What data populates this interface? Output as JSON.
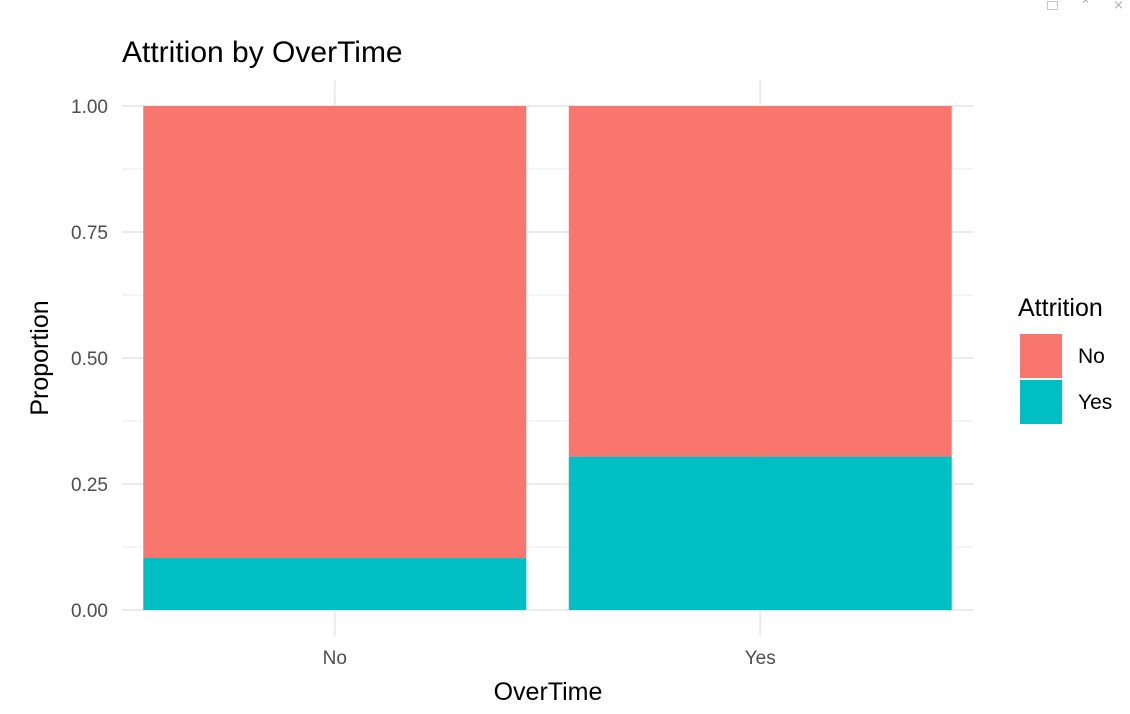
{
  "window_controls": {
    "icons": [
      "restore-icon",
      "collapse-icon",
      "close-icon"
    ],
    "collapse_glyph": "⌃",
    "close_glyph": "×"
  },
  "chart_data": {
    "type": "bar",
    "stacked": true,
    "title": "Attrition by OverTime",
    "xlabel": "OverTime",
    "ylabel": "Proportion",
    "categories": [
      "No",
      "Yes"
    ],
    "series": [
      {
        "name": "No",
        "values": [
          0.896,
          0.695
        ],
        "color": "#F8766D"
      },
      {
        "name": "Yes",
        "values": [
          0.104,
          0.305
        ],
        "color": "#00BFC4"
      }
    ],
    "ylim": [
      0,
      1
    ],
    "yticks": [
      "0.00",
      "0.25",
      "0.50",
      "0.75",
      "1.00"
    ],
    "grid": true,
    "legend": {
      "title": "Attrition",
      "position": "right",
      "items": [
        "No",
        "Yes"
      ]
    }
  }
}
